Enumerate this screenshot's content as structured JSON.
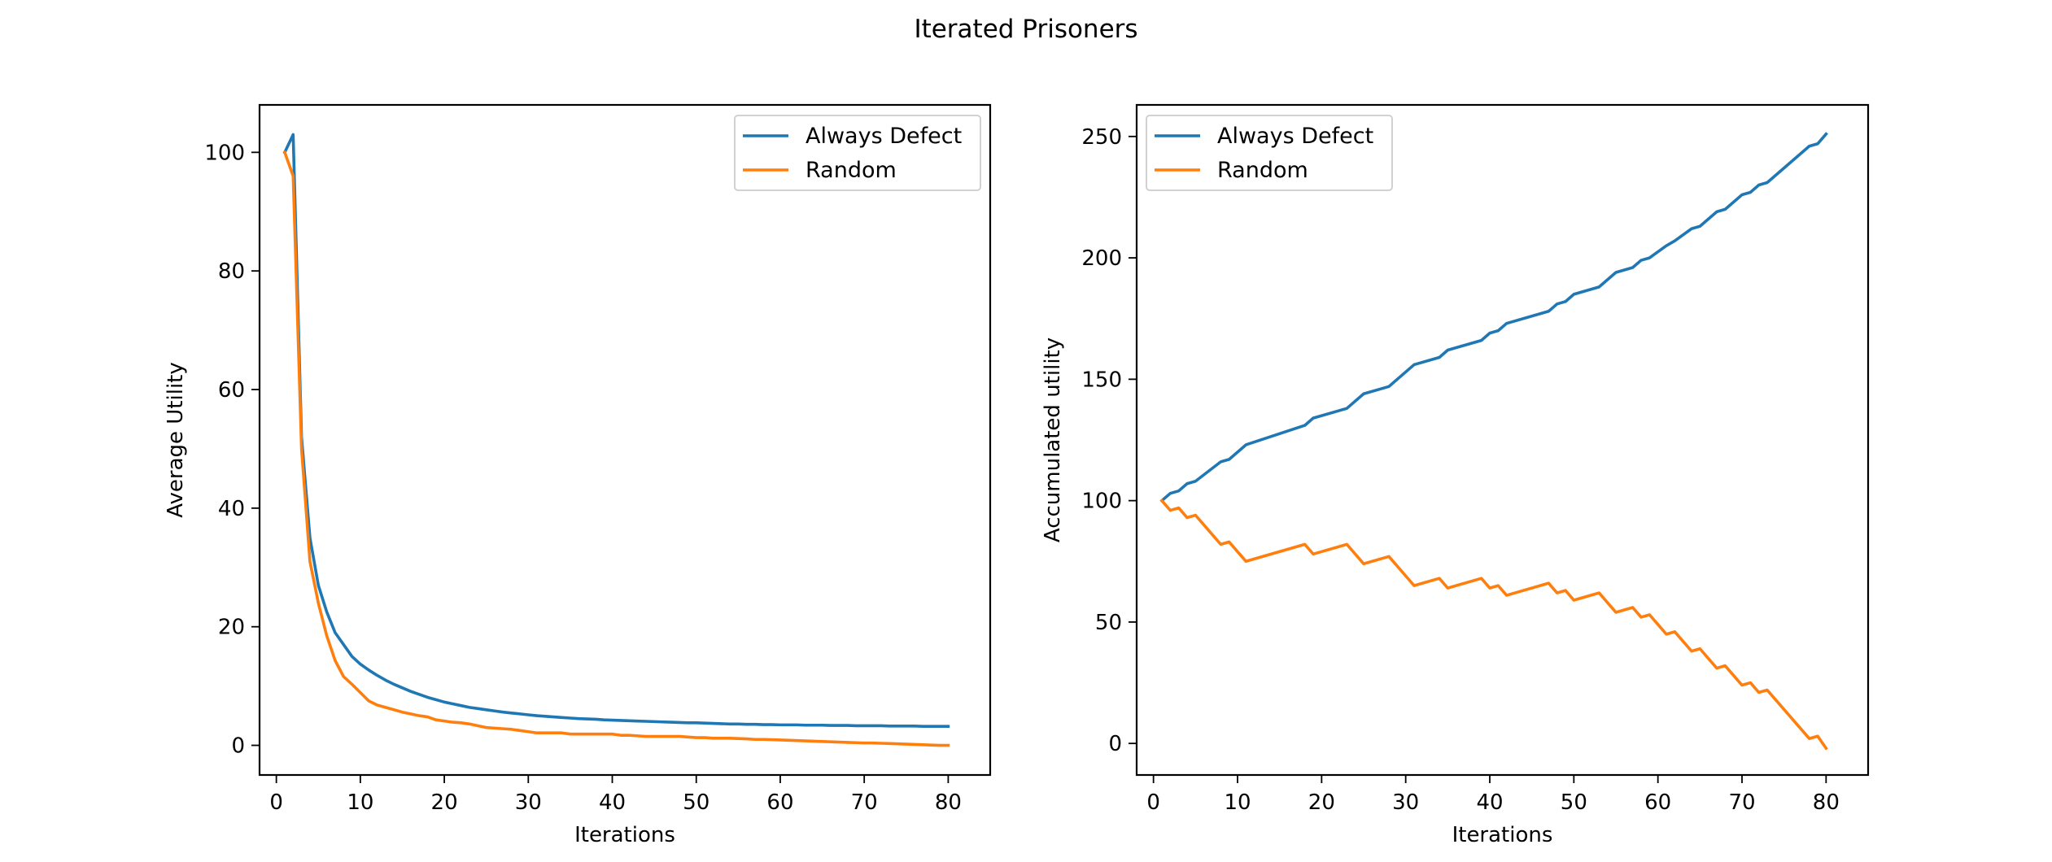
{
  "figure": {
    "suptitle": "Iterated Prisoners"
  },
  "colors": {
    "always_defect": "#1f77b4",
    "random": "#ff7f0e"
  },
  "chart_data": [
    {
      "type": "line",
      "xlabel": "Iterations",
      "ylabel": "Average Utility",
      "xlim": [
        -2,
        85
      ],
      "ylim": [
        -5,
        108
      ],
      "xticks": [
        0,
        10,
        20,
        30,
        40,
        50,
        60,
        70,
        80
      ],
      "yticks": [
        0,
        20,
        40,
        60,
        80,
        100
      ],
      "legend_position": "upper right",
      "grid": false,
      "series": [
        {
          "name": "Always Defect",
          "color": "#1f77b4",
          "x": [
            1,
            2,
            3,
            4,
            5,
            6,
            7,
            8,
            9,
            10,
            11,
            12,
            13,
            14,
            15,
            16,
            17,
            18,
            19,
            20,
            21,
            22,
            23,
            24,
            25,
            26,
            27,
            28,
            29,
            30,
            31,
            32,
            33,
            34,
            35,
            36,
            37,
            38,
            39,
            40,
            41,
            42,
            43,
            44,
            45,
            46,
            47,
            48,
            49,
            50,
            51,
            52,
            53,
            54,
            55,
            56,
            57,
            58,
            59,
            60,
            61,
            62,
            63,
            64,
            65,
            66,
            67,
            68,
            69,
            70,
            71,
            72,
            73,
            74,
            75,
            76,
            77,
            78,
            79,
            80
          ],
          "y": [
            100,
            103,
            52,
            35,
            27,
            22.5,
            19,
            17,
            15,
            13.7,
            12.7,
            11.8,
            11,
            10.3,
            9.7,
            9.1,
            8.6,
            8.1,
            7.7,
            7.3,
            7,
            6.7,
            6.4,
            6.2,
            6,
            5.8,
            5.6,
            5.45,
            5.3,
            5.15,
            5,
            4.9,
            4.8,
            4.7,
            4.6,
            4.5,
            4.45,
            4.4,
            4.3,
            4.25,
            4.2,
            4.15,
            4.1,
            4.05,
            4,
            3.95,
            3.9,
            3.85,
            3.8,
            3.8,
            3.75,
            3.7,
            3.65,
            3.6,
            3.6,
            3.55,
            3.55,
            3.5,
            3.5,
            3.45,
            3.45,
            3.45,
            3.4,
            3.4,
            3.4,
            3.35,
            3.35,
            3.35,
            3.3,
            3.3,
            3.3,
            3.3,
            3.25,
            3.25,
            3.25,
            3.25,
            3.2,
            3.2,
            3.2,
            3.2
          ]
        },
        {
          "name": "Random",
          "color": "#ff7f0e",
          "x": [
            1,
            2,
            3,
            4,
            5,
            6,
            7,
            8,
            9,
            10,
            11,
            12,
            13,
            14,
            15,
            16,
            17,
            18,
            19,
            20,
            21,
            22,
            23,
            24,
            25,
            26,
            27,
            28,
            29,
            30,
            31,
            32,
            33,
            34,
            35,
            36,
            37,
            38,
            39,
            40,
            41,
            42,
            43,
            44,
            45,
            46,
            47,
            48,
            49,
            50,
            51,
            52,
            53,
            54,
            55,
            56,
            57,
            58,
            59,
            60,
            61,
            62,
            63,
            64,
            65,
            66,
            67,
            68,
            69,
            70,
            71,
            72,
            73,
            74,
            75,
            76,
            77,
            78,
            79,
            80
          ],
          "y": [
            100,
            96,
            50,
            31,
            24,
            18.5,
            14.3,
            11.6,
            10.3,
            8.9,
            7.5,
            6.8,
            6.4,
            6,
            5.6,
            5.3,
            5,
            4.8,
            4.3,
            4.1,
            3.9,
            3.8,
            3.6,
            3.3,
            3,
            2.9,
            2.8,
            2.7,
            2.5,
            2.3,
            2.1,
            2.1,
            2.1,
            2.1,
            1.9,
            1.9,
            1.9,
            1.9,
            1.9,
            1.9,
            1.7,
            1.7,
            1.6,
            1.5,
            1.5,
            1.5,
            1.5,
            1.5,
            1.4,
            1.3,
            1.3,
            1.2,
            1.2,
            1.2,
            1.15,
            1.1,
            1.0,
            1.0,
            0.95,
            0.9,
            0.85,
            0.8,
            0.75,
            0.7,
            0.65,
            0.6,
            0.55,
            0.5,
            0.45,
            0.4,
            0.4,
            0.35,
            0.3,
            0.25,
            0.2,
            0.15,
            0.1,
            0.05,
            0,
            0
          ]
        }
      ]
    },
    {
      "type": "line",
      "xlabel": "Iterations",
      "ylabel": "Accumulated utility",
      "xlim": [
        -2,
        85
      ],
      "ylim": [
        -13,
        263
      ],
      "xticks": [
        0,
        10,
        20,
        30,
        40,
        50,
        60,
        70,
        80
      ],
      "yticks": [
        0,
        50,
        100,
        150,
        200,
        250
      ],
      "legend_position": "upper left",
      "grid": false,
      "series": [
        {
          "name": "Always Defect",
          "color": "#1f77b4",
          "x": [
            1,
            2,
            3,
            4,
            5,
            8,
            9,
            11,
            18,
            19,
            22,
            23,
            25,
            27,
            28,
            31,
            34,
            35,
            39,
            40,
            41,
            42,
            47,
            48,
            49,
            50,
            53,
            55,
            57,
            58,
            59,
            61,
            62,
            64,
            65,
            67,
            68,
            70,
            71,
            72,
            73,
            78,
            79,
            80
          ],
          "y": [
            100,
            103,
            104,
            107,
            108,
            116,
            117,
            123,
            131,
            134,
            137,
            138,
            144,
            146,
            147,
            156,
            159,
            162,
            166,
            169,
            170,
            173,
            178,
            181,
            182,
            185,
            188,
            194,
            196,
            199,
            200,
            205,
            207,
            212,
            213,
            219,
            220,
            226,
            227,
            230,
            231,
            246,
            247,
            251
          ]
        },
        {
          "name": "Random",
          "color": "#ff7f0e",
          "x": [
            1,
            2,
            3,
            4,
            5,
            8,
            9,
            11,
            18,
            19,
            23,
            25,
            28,
            31,
            34,
            35,
            39,
            40,
            41,
            42,
            47,
            48,
            49,
            50,
            53,
            55,
            57,
            58,
            59,
            61,
            62,
            64,
            65,
            67,
            68,
            70,
            71,
            72,
            73,
            78,
            79,
            80
          ],
          "y": [
            100,
            96,
            97,
            93,
            94,
            82,
            83,
            75,
            82,
            78,
            82,
            74,
            77,
            65,
            68,
            64,
            68,
            64,
            65,
            61,
            66,
            62,
            63,
            59,
            62,
            54,
            56,
            52,
            53,
            45,
            46,
            38,
            39,
            31,
            32,
            24,
            25,
            21,
            22,
            2,
            3,
            -2
          ]
        }
      ]
    }
  ]
}
